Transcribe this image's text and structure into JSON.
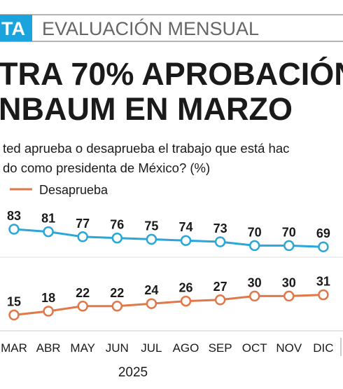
{
  "header": {
    "tag": "TA",
    "section": "EVALUACIÓN MENSUAL"
  },
  "chart_data": {
    "type": "line",
    "title": [
      "TRA 70% APROBACIÓN",
      "NBAUM EN MARZO"
    ],
    "subtitle": [
      "ted aprueba o desaprueba el trabajo que está hac",
      "do como presidenta de México? (%)"
    ],
    "categories": [
      "MAR",
      "ABR",
      "MAY",
      "JUN",
      "JUL",
      "AGO",
      "SEP",
      "OCT",
      "NOV",
      "DIC"
    ],
    "x_label": "2025",
    "series": [
      {
        "color": "#2ba6d8",
        "values": [
          83,
          81,
          77,
          76,
          75,
          74,
          73,
          70,
          70,
          69
        ]
      },
      {
        "name": "Desaprueba",
        "color": "#e0784a",
        "values": [
          15,
          18,
          22,
          22,
          24,
          26,
          27,
          30,
          30,
          31
        ]
      }
    ]
  }
}
